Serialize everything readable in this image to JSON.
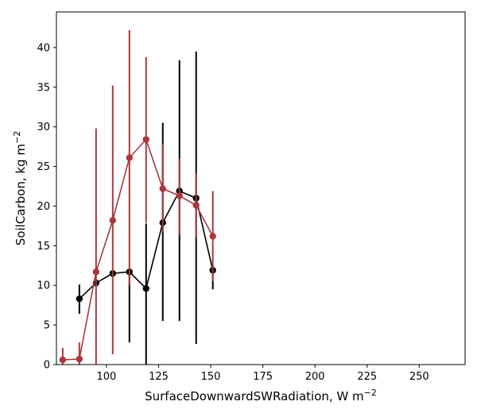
{
  "chart_data": {
    "type": "line",
    "xlabel": "SurfaceDownwardSWRadiation,",
    "xlabel_unit": "W m",
    "xlabel_exp": "−2",
    "ylabel": "SoilCarbon,",
    "ylabel_unit": "kg m",
    "ylabel_exp": "−2",
    "xlim": [
      76,
      272
    ],
    "ylim": [
      0,
      44.5
    ],
    "xticks": [
      100,
      125,
      150,
      175,
      200,
      225,
      250
    ],
    "yticks": [
      0,
      5,
      10,
      15,
      20,
      25,
      30,
      35,
      40
    ],
    "grid": false,
    "series": [
      {
        "color": "#000000",
        "x": [
          87,
          95,
          103,
          111,
          119,
          127,
          135,
          143,
          151
        ],
        "y": [
          8.3,
          10.3,
          11.5,
          11.7,
          9.6,
          17.9,
          21.9,
          21.0,
          11.9
        ],
        "err_low": [
          6.4,
          10.0,
          11.0,
          2.8,
          0.0,
          5.5,
          5.5,
          2.6,
          9.5
        ],
        "err_high": [
          10.1,
          10.6,
          11.9,
          11.8,
          17.8,
          30.5,
          38.4,
          39.5,
          12.4
        ]
      },
      {
        "color": "#a8383b",
        "x": [
          79,
          87,
          95,
          103,
          111,
          119,
          127,
          135,
          143,
          151
        ],
        "y": [
          0.6,
          0.7,
          11.7,
          18.2,
          26.1,
          28.4,
          22.2,
          21.3,
          20.1,
          16.2
        ],
        "err_low": [
          0.0,
          0.0,
          0.0,
          1.3,
          10.0,
          17.9,
          16.8,
          16.4,
          16.0,
          10.5
        ],
        "err_high": [
          2.1,
          2.8,
          29.8,
          35.2,
          42.2,
          38.8,
          27.8,
          26.0,
          24.1,
          21.9
        ]
      }
    ]
  }
}
